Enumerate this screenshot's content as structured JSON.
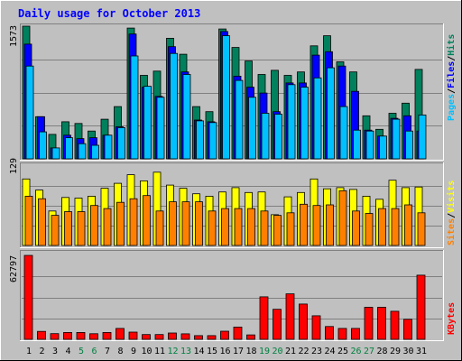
{
  "title": "Daily usage for October 2013",
  "colors": {
    "background": "#c0c0c0",
    "title": "#0000ff",
    "hits": "#00805c",
    "files": "#0000ff",
    "pages": "#00c0ff",
    "visits": "#ffff00",
    "sites": "#ff8000",
    "kbytes": "#ff0000",
    "weekend_label": "#008040",
    "weekday_label": "#000000"
  },
  "chart_data": [
    {
      "type": "bar",
      "name": "hits-files-pages",
      "y_max_label": "1573",
      "ylim": [
        0,
        1573
      ],
      "legend": [
        "Pages",
        "Files",
        "Hits"
      ],
      "legend_sep": "/",
      "categories": [
        "1",
        "2",
        "3",
        "4",
        "5",
        "6",
        "7",
        "8",
        "9",
        "10",
        "11",
        "12",
        "13",
        "14",
        "15",
        "16",
        "17",
        "18",
        "19",
        "20",
        "21",
        "22",
        "23",
        "24",
        "25",
        "26",
        "27",
        "28",
        "29",
        "30",
        "31"
      ],
      "series": [
        {
          "name": "Hits",
          "values": [
            1573,
            500,
            290,
            440,
            420,
            330,
            470,
            620,
            1550,
            990,
            1040,
            1430,
            1240,
            620,
            560,
            1540,
            1320,
            1160,
            1000,
            1050,
            990,
            1030,
            1340,
            1460,
            1150,
            1030,
            510,
            350,
            540,
            660,
            1060
          ]
        },
        {
          "name": "Files",
          "values": [
            1360,
            500,
            130,
            280,
            240,
            250,
            280,
            380,
            1480,
            850,
            740,
            1330,
            1030,
            460,
            440,
            1510,
            980,
            850,
            780,
            560,
            900,
            900,
            1230,
            1270,
            1100,
            800,
            340,
            270,
            480,
            510,
            330
          ]
        },
        {
          "name": "Pages",
          "values": [
            1100,
            320,
            130,
            250,
            180,
            160,
            280,
            370,
            1220,
            860,
            730,
            1250,
            1000,
            450,
            430,
            1460,
            930,
            730,
            540,
            530,
            880,
            850,
            960,
            1080,
            620,
            340,
            330,
            270,
            470,
            330,
            520
          ]
        }
      ]
    },
    {
      "type": "bar",
      "name": "sites-visits",
      "y_max_label": "129",
      "ylim": [
        0,
        129
      ],
      "legend": [
        "Sites",
        "Visits"
      ],
      "legend_sep": "/",
      "categories": [
        "1",
        "2",
        "3",
        "4",
        "5",
        "6",
        "7",
        "8",
        "9",
        "10",
        "11",
        "12",
        "13",
        "14",
        "15",
        "16",
        "17",
        "18",
        "19",
        "20",
        "21",
        "22",
        "23",
        "24",
        "25",
        "26",
        "27",
        "28",
        "29",
        "30",
        "31"
      ],
      "series": [
        {
          "name": "Visits",
          "values": [
            108,
            90,
            56,
            78,
            77,
            80,
            93,
            101,
            115,
            105,
            119,
            98,
            93,
            84,
            80,
            87,
            94,
            86,
            87,
            50,
            79,
            86,
            108,
            92,
            94,
            91,
            80,
            75,
            106,
            94,
            95
          ]
        },
        {
          "name": "Sites",
          "values": [
            80,
            76,
            49,
            55,
            55,
            65,
            60,
            70,
            76,
            81,
            56,
            71,
            71,
            71,
            56,
            60,
            60,
            60,
            56,
            49,
            53,
            67,
            65,
            66,
            89,
            56,
            52,
            60,
            60,
            66,
            53
          ]
        }
      ]
    },
    {
      "type": "bar",
      "name": "kbytes",
      "y_max_label": "62797",
      "ylim": [
        0,
        62797
      ],
      "legend": [
        "KBytes"
      ],
      "legend_sep": "/",
      "categories": [
        "1",
        "2",
        "3",
        "4",
        "5",
        "6",
        "7",
        "8",
        "9",
        "10",
        "11",
        "12",
        "13",
        "14",
        "15",
        "16",
        "17",
        "18",
        "19",
        "20",
        "21",
        "22",
        "23",
        "24",
        "25",
        "26",
        "27",
        "28",
        "29",
        "30",
        "31"
      ],
      "series": [
        {
          "name": "KBytes",
          "values": [
            62797,
            5910,
            4280,
            5100,
            5100,
            4180,
            5100,
            8160,
            5430,
            3590,
            3590,
            4700,
            4090,
            2760,
            2760,
            6050,
            9170,
            3320,
            31800,
            22500,
            34000,
            26400,
            17600,
            9580,
            8160,
            8160,
            24000,
            24000,
            21000,
            15000,
            48000
          ]
        }
      ]
    }
  ],
  "x_axis": {
    "labels": [
      "1",
      "2",
      "3",
      "4",
      "5",
      "6",
      "7",
      "8",
      "9",
      "10",
      "11",
      "12",
      "13",
      "14",
      "15",
      "16",
      "17",
      "18",
      "19",
      "20",
      "21",
      "22",
      "23",
      "24",
      "25",
      "26",
      "27",
      "28",
      "29",
      "30",
      "31"
    ],
    "weekend_days": [
      "5",
      "6",
      "12",
      "13",
      "19",
      "20",
      "26",
      "27"
    ]
  }
}
